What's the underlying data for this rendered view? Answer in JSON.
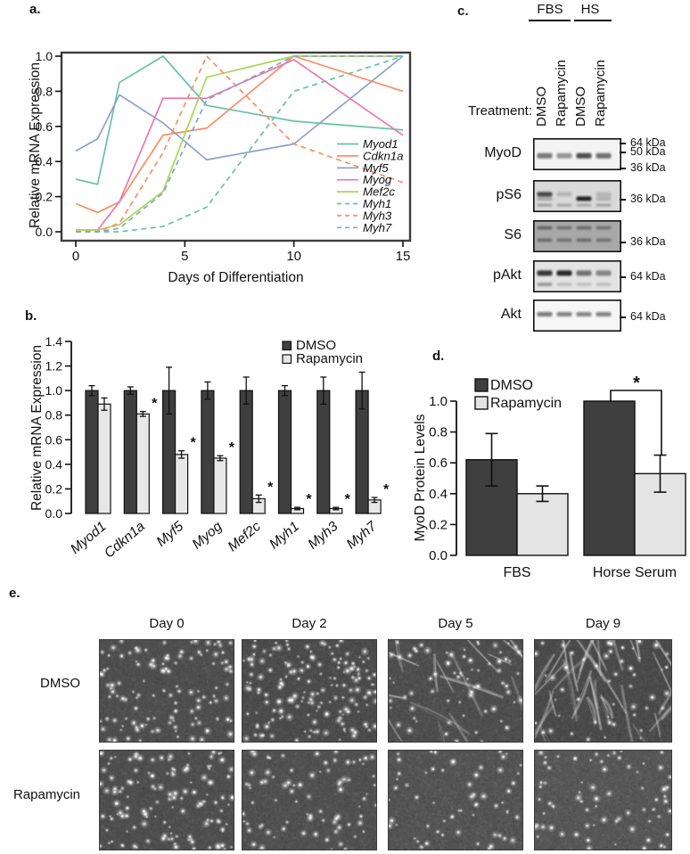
{
  "figure": {
    "panels": {
      "a_label": "a.",
      "b_label": "b.",
      "c_label": "c.",
      "d_label": "d.",
      "e_label": "e."
    }
  },
  "chart_data": [
    {
      "id": "panel_a",
      "type": "line",
      "xlabel": "Days of Differentiation",
      "ylabel": "Relative mRNA Expression",
      "x": [
        0,
        1,
        2,
        4,
        6,
        10,
        15
      ],
      "xticks": [
        0,
        5,
        10,
        15
      ],
      "yticks": [
        0.0,
        0.2,
        0.4,
        0.6,
        0.8,
        1.0
      ],
      "xlim": [
        0,
        15
      ],
      "ylim": [
        0,
        1.0
      ],
      "grid": false,
      "legend_position": "inside-right",
      "series": [
        {
          "name": "Myod1",
          "color": "#66c2a5",
          "dash": false,
          "values": [
            0.3,
            0.27,
            0.85,
            1.0,
            0.72,
            0.63,
            0.58
          ]
        },
        {
          "name": "Cdkn1a",
          "color": "#fc8d62",
          "dash": false,
          "values": [
            0.16,
            0.11,
            0.17,
            0.55,
            0.59,
            1.0,
            0.8
          ]
        },
        {
          "name": "Myf5",
          "color": "#8da0cb",
          "dash": false,
          "values": [
            0.46,
            0.53,
            0.78,
            0.62,
            0.41,
            0.5,
            1.0
          ]
        },
        {
          "name": "Myog",
          "color": "#e878b0",
          "dash": false,
          "values": [
            0.01,
            0.01,
            0.17,
            0.76,
            0.76,
            0.98,
            0.55
          ]
        },
        {
          "name": "Mef2c",
          "color": "#a6d854",
          "dash": false,
          "values": [
            0.01,
            0.01,
            0.04,
            0.23,
            0.88,
            1.0,
            1.0
          ]
        },
        {
          "name": "Myh1",
          "color": "#66c2a5",
          "dash": true,
          "values": [
            0.0,
            0.0,
            0.0,
            0.03,
            0.14,
            0.8,
            1.0
          ]
        },
        {
          "name": "Myh3",
          "color": "#fc8d62",
          "dash": true,
          "values": [
            0.0,
            0.0,
            0.05,
            0.45,
            1.0,
            0.5,
            0.28
          ]
        },
        {
          "name": "Myh7",
          "color": "#8da0cb",
          "dash": true,
          "values": [
            0.0,
            0.0,
            0.02,
            0.22,
            0.75,
            1.0,
            1.0
          ]
        }
      ]
    },
    {
      "id": "panel_b",
      "type": "bar",
      "ylabel": "Relative mRNA Expression",
      "categories": [
        "Myod1",
        "Cdkn1a",
        "Myf5",
        "Myog",
        "Mef2c",
        "Myh1",
        "Myh3",
        "Myh7"
      ],
      "yticks": [
        0.0,
        0.2,
        0.4,
        0.6,
        0.8,
        1.0,
        1.2,
        1.4
      ],
      "ylim": [
        0,
        1.4
      ],
      "sig_label": "*",
      "series": [
        {
          "name": "DMSO",
          "color": "#3f3f3f",
          "values": [
            1.0,
            1.0,
            1.0,
            1.0,
            1.0,
            1.0,
            1.0,
            1.0
          ],
          "errors": [
            0.04,
            0.03,
            0.19,
            0.07,
            0.11,
            0.04,
            0.11,
            0.15
          ]
        },
        {
          "name": "Rapamycin",
          "color": "#e8e8e8",
          "values": [
            0.89,
            0.81,
            0.48,
            0.45,
            0.12,
            0.04,
            0.04,
            0.11
          ],
          "errors": [
            0.05,
            0.02,
            0.03,
            0.02,
            0.03,
            0.01,
            0.01,
            0.02
          ],
          "sig": [
            false,
            true,
            true,
            true,
            true,
            true,
            true,
            true
          ]
        }
      ]
    },
    {
      "id": "panel_d",
      "type": "bar",
      "ylabel": "MyoD Protein Levels",
      "categories": [
        "FBS",
        "Horse Serum"
      ],
      "yticks": [
        0.0,
        0.2,
        0.4,
        0.6,
        0.8,
        1.0
      ],
      "ylim": [
        0,
        1.0
      ],
      "sig_label": "*",
      "sig_bracket": {
        "group_index": 1,
        "label": "*"
      },
      "series": [
        {
          "name": "DMSO",
          "color": "#3f3f3f",
          "values": [
            0.62,
            1.0
          ],
          "errors": [
            0.17,
            0
          ]
        },
        {
          "name": "Rapamycin",
          "color": "#e4e4e4",
          "values": [
            0.4,
            0.53
          ],
          "errors": [
            0.05,
            0.12
          ]
        }
      ]
    }
  ],
  "panel_c": {
    "group_headers": [
      "FBS",
      "HS"
    ],
    "treatment_label": "Treatment:",
    "lanes": [
      "DMSO",
      "Rapamycin",
      "DMSO",
      "Rapamycin"
    ],
    "blots": [
      {
        "name": "MyoD",
        "bg": "#f3f3f3",
        "markers": [
          "64 kDa",
          "50 kDa",
          "36 kDa"
        ],
        "bands": [
          {
            "y": 0.55,
            "h": 6,
            "lanes": [
              0.55,
              0.35,
              0.78,
              0.6
            ]
          }
        ]
      },
      {
        "name": "pS6",
        "bg": "#d9d9d9",
        "markers": [
          "36 kDa"
        ],
        "bands": [
          {
            "y": 0.44,
            "h": 5,
            "lanes": [
              0.8,
              0.07,
              0.0,
              0.05
            ]
          },
          {
            "y": 0.58,
            "h": 5,
            "lanes": [
              0.12,
              0.0,
              1.0,
              0.08
            ]
          },
          {
            "y": 0.78,
            "h": 3,
            "lanes": [
              0.22,
              0.15,
              0.15,
              0.2
            ]
          }
        ]
      },
      {
        "name": "S6",
        "bg": "#a8a8a8",
        "markers": [
          "36 kDa"
        ],
        "bands": [
          {
            "y": 0.24,
            "h": 4,
            "lanes": [
              0.35,
              0.26,
              0.3,
              0.26
            ]
          },
          {
            "y": 0.62,
            "h": 4,
            "lanes": [
              0.3,
              0.26,
              0.3,
              0.26
            ]
          }
        ]
      },
      {
        "name": "pAkt",
        "bg": "#e3e3e3",
        "markers": [
          "64 kDa"
        ],
        "bands": [
          {
            "y": 0.4,
            "h": 6,
            "lanes": [
              0.88,
              0.97,
              0.55,
              0.45
            ]
          },
          {
            "y": 0.75,
            "h": 4,
            "lanes": [
              0.25,
              0.05,
              0.04,
              0.05
            ]
          }
        ]
      },
      {
        "name": "Akt",
        "bg": "#f6f6f6",
        "markers": [
          "64 kDa"
        ],
        "bands": [
          {
            "y": 0.46,
            "h": 5,
            "lanes": [
              0.55,
              0.5,
              0.47,
              0.5
            ]
          }
        ]
      }
    ]
  },
  "panel_e": {
    "col_headers": [
      "Day 0",
      "Day 2",
      "Day 5",
      "Day 9"
    ],
    "row_headers": [
      "DMSO",
      "Rapamycin"
    ],
    "cells": [
      {
        "speckles": 120,
        "streaks": 0,
        "fine": 0.4,
        "base": "#4e4e4e"
      },
      {
        "speckles": 160,
        "streaks": 0,
        "fine": 0.5,
        "base": "#4b4b4b"
      },
      {
        "speckles": 70,
        "streaks": 16,
        "fine": 0.5,
        "base": "#4e4e4e"
      },
      {
        "speckles": 50,
        "streaks": 34,
        "fine": 0.5,
        "base": "#4a4a4a"
      },
      {
        "speckles": 130,
        "streaks": 0,
        "fine": 0.4,
        "base": "#4e4e4e"
      },
      {
        "speckles": 80,
        "streaks": 0,
        "fine": 0.5,
        "base": "#505050"
      },
      {
        "speckles": 60,
        "streaks": 0,
        "fine": 0.9,
        "base": "#535353"
      },
      {
        "speckles": 70,
        "streaks": 0,
        "fine": 0.9,
        "base": "#565656"
      }
    ]
  }
}
